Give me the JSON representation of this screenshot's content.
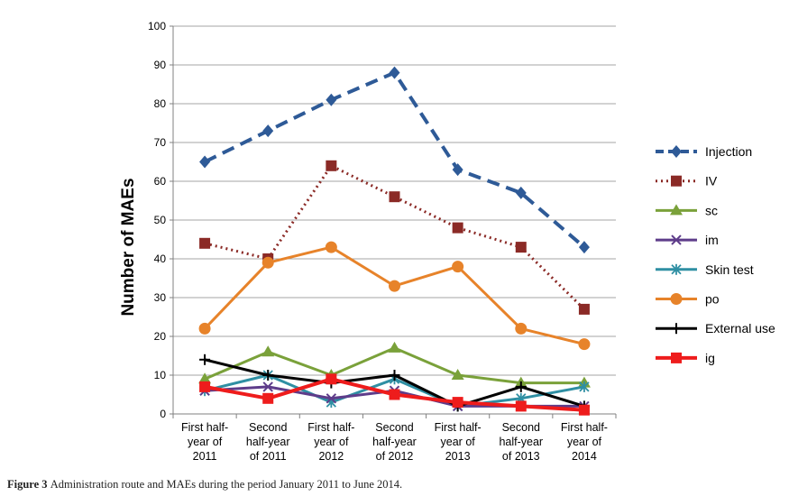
{
  "figure": {
    "label": "Figure 3",
    "caption": "Administration route and MAEs during the period January 2011 to June 2014."
  },
  "chart_data": {
    "type": "line",
    "title": "",
    "xlabel": "",
    "ylabel": "Number of MAEs",
    "ylim": [
      0,
      100
    ],
    "yticks": [
      "0",
      "10",
      "20",
      "30",
      "40",
      "50",
      "60",
      "70",
      "80",
      "90",
      "100"
    ],
    "grid": true,
    "legend_position": "right",
    "categories": [
      [
        "First half-",
        "year of",
        "2011"
      ],
      [
        "Second",
        "half-year",
        "of 2011"
      ],
      [
        "First half-",
        "year of",
        "2012"
      ],
      [
        "Second",
        "half-year",
        "of 2012"
      ],
      [
        "First half-",
        "year of",
        "2013"
      ],
      [
        "Second",
        "half-year",
        "of 2013"
      ],
      [
        "First half-",
        "year of",
        "2014"
      ]
    ],
    "series": [
      {
        "name": "Injection",
        "values": [
          65,
          73,
          81,
          88,
          63,
          57,
          43
        ],
        "color": "#2e5a97",
        "marker": "diamond",
        "line": "dash"
      },
      {
        "name": "IV",
        "values": [
          44,
          40,
          64,
          56,
          48,
          43,
          27
        ],
        "color": "#8b2a26",
        "marker": "square",
        "line": "dot"
      },
      {
        "name": "sc",
        "values": [
          9,
          16,
          10,
          17,
          10,
          8,
          8
        ],
        "color": "#7aa13a",
        "marker": "triangle",
        "line": "solid"
      },
      {
        "name": "im",
        "values": [
          6,
          7,
          4,
          6,
          2,
          2,
          2
        ],
        "color": "#5e3c8a",
        "marker": "x",
        "line": "solid"
      },
      {
        "name": "Skin test",
        "values": [
          6,
          10,
          3,
          9,
          2,
          4,
          7
        ],
        "color": "#2f8fa3",
        "marker": "star",
        "line": "solid"
      },
      {
        "name": "po",
        "values": [
          22,
          39,
          43,
          33,
          38,
          22,
          18
        ],
        "color": "#e7832a",
        "marker": "circle",
        "line": "solid"
      },
      {
        "name": "External use",
        "values": [
          14,
          10,
          8,
          10,
          2,
          7,
          2
        ],
        "color": "#000000",
        "marker": "plus",
        "line": "solid"
      },
      {
        "name": "ig",
        "values": [
          7,
          4,
          9,
          5,
          3,
          2,
          1
        ],
        "color": "#ee1c1c",
        "marker": "square",
        "line": "solid"
      }
    ]
  }
}
